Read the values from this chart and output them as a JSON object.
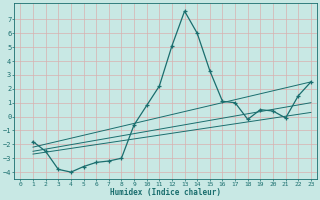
{
  "xlabel": "Humidex (Indice chaleur)",
  "ylabel": "",
  "xlim": [
    -0.5,
    23.5
  ],
  "ylim": [
    -4.5,
    8.2
  ],
  "xticks": [
    0,
    1,
    2,
    3,
    4,
    5,
    6,
    7,
    8,
    9,
    10,
    11,
    12,
    13,
    14,
    15,
    16,
    17,
    18,
    19,
    20,
    21,
    22,
    23
  ],
  "yticks": [
    -4,
    -3,
    -2,
    -1,
    0,
    1,
    2,
    3,
    4,
    5,
    6,
    7
  ],
  "bg_color": "#c8e8e4",
  "line_color": "#1a6e6e",
  "grid_color": "#b0d4d0",
  "line1_x": [
    1,
    2,
    3,
    4,
    5,
    6,
    7,
    8,
    9,
    10,
    11,
    12,
    13,
    14,
    15,
    16,
    17,
    18,
    19,
    20,
    21,
    22,
    23
  ],
  "line1_y": [
    -1.8,
    -2.5,
    -3.8,
    -4.0,
    -3.6,
    -3.3,
    -3.2,
    -3.0,
    -0.6,
    0.8,
    2.2,
    5.1,
    7.6,
    6.0,
    3.3,
    1.1,
    1.0,
    -0.2,
    0.5,
    0.4,
    -0.1,
    1.5,
    2.5
  ],
  "line2_x": [
    1,
    23
  ],
  "line2_y": [
    -2.2,
    2.5
  ],
  "line3_x": [
    1,
    23
  ],
  "line3_y": [
    -2.5,
    1.0
  ],
  "line4_x": [
    1,
    23
  ],
  "line4_y": [
    -2.7,
    0.3
  ]
}
